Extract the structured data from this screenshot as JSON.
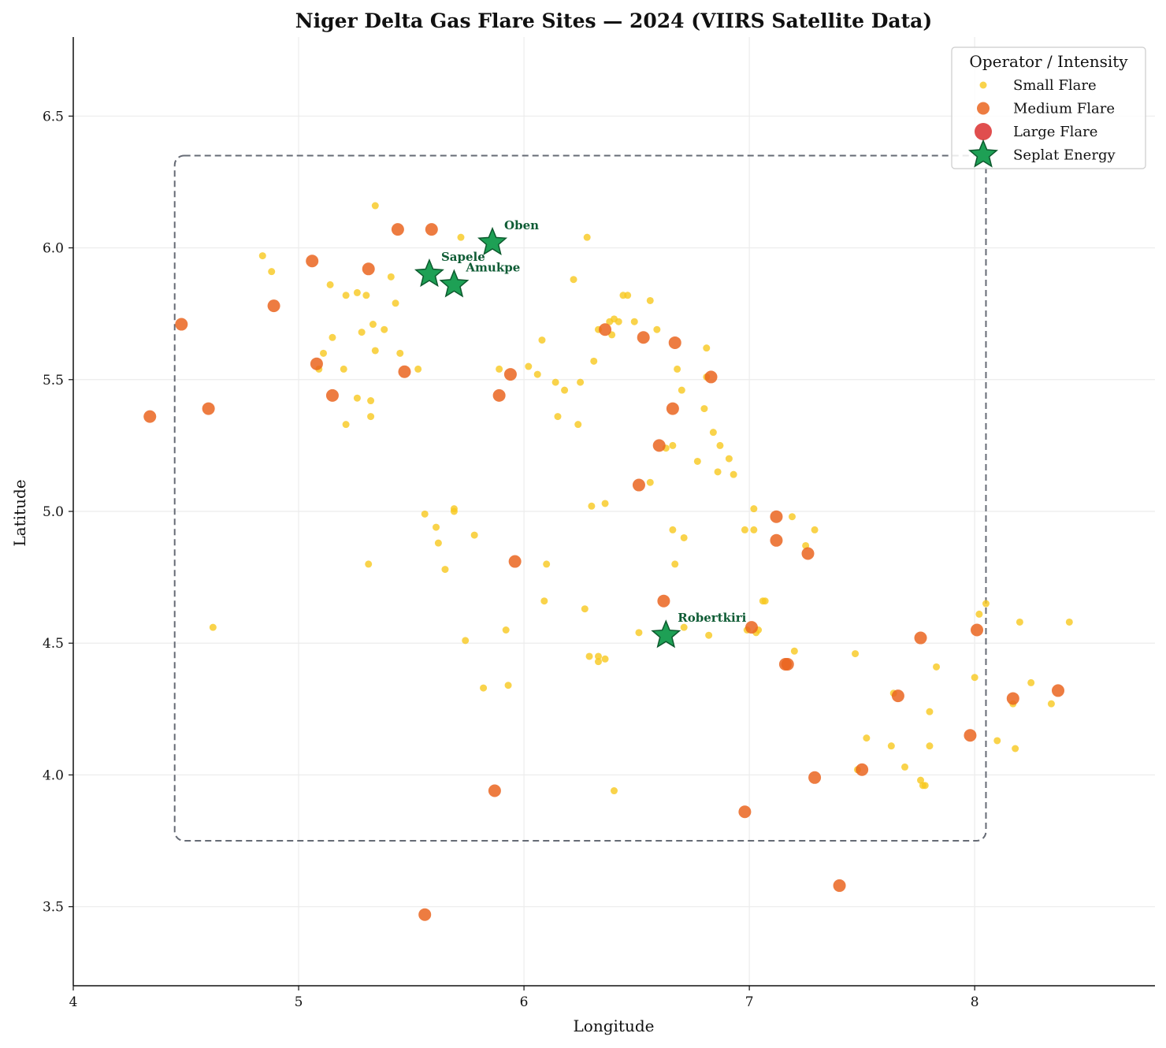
{
  "chart_data": {
    "type": "scatter",
    "title": "Niger Delta Gas Flare Sites — 2024 (VIIRS Satellite Data)",
    "xlabel": "Longitude",
    "ylabel": "Latitude",
    "xlim": [
      4.0,
      8.8
    ],
    "ylim": [
      3.2,
      6.8
    ],
    "xticks": [
      4,
      5,
      6,
      7,
      8
    ],
    "yticks": [
      3.5,
      4.0,
      4.5,
      5.0,
      5.5,
      6.0,
      6.5
    ],
    "grid": true,
    "legend_title": "Operator / Intensity",
    "legend_position": "top-right",
    "region_box": {
      "x": [
        4.45,
        8.05
      ],
      "y": [
        3.75,
        6.35
      ],
      "style": "dashed"
    },
    "series": [
      {
        "name": "Small Flare",
        "color": "#F7C81E",
        "marker": "circle-small",
        "points": [
          [
            4.84,
            5.97
          ],
          [
            4.88,
            5.91
          ],
          [
            5.34,
            6.16
          ],
          [
            5.72,
            6.04
          ],
          [
            6.28,
            6.04
          ],
          [
            5.14,
            5.86
          ],
          [
            5.21,
            5.82
          ],
          [
            5.26,
            5.83
          ],
          [
            5.3,
            5.82
          ],
          [
            5.41,
            5.89
          ],
          [
            5.43,
            5.79
          ],
          [
            6.22,
            5.88
          ],
          [
            6.44,
            5.82
          ],
          [
            6.46,
            5.82
          ],
          [
            6.56,
            5.8
          ],
          [
            5.33,
            5.71
          ],
          [
            5.38,
            5.69
          ],
          [
            5.28,
            5.68
          ],
          [
            5.15,
            5.66
          ],
          [
            5.11,
            5.6
          ],
          [
            5.34,
            5.61
          ],
          [
            5.45,
            5.6
          ],
          [
            5.2,
            5.54
          ],
          [
            5.09,
            5.54
          ],
          [
            5.53,
            5.54
          ],
          [
            5.26,
            5.43
          ],
          [
            5.32,
            5.42
          ],
          [
            5.32,
            5.36
          ],
          [
            5.21,
            5.33
          ],
          [
            6.08,
            5.65
          ],
          [
            6.33,
            5.69
          ],
          [
            6.38,
            5.72
          ],
          [
            6.4,
            5.73
          ],
          [
            6.42,
            5.72
          ],
          [
            6.39,
            5.67
          ],
          [
            6.49,
            5.72
          ],
          [
            6.59,
            5.69
          ],
          [
            6.81,
            5.62
          ],
          [
            6.02,
            5.55
          ],
          [
            6.06,
            5.52
          ],
          [
            6.14,
            5.49
          ],
          [
            6.18,
            5.46
          ],
          [
            6.25,
            5.49
          ],
          [
            6.31,
            5.57
          ],
          [
            5.89,
            5.54
          ],
          [
            6.68,
            5.54
          ],
          [
            6.7,
            5.46
          ],
          [
            6.81,
            5.51
          ],
          [
            6.15,
            5.36
          ],
          [
            6.24,
            5.33
          ],
          [
            6.8,
            5.39
          ],
          [
            6.84,
            5.3
          ],
          [
            6.87,
            5.25
          ],
          [
            6.91,
            5.2
          ],
          [
            6.93,
            5.14
          ],
          [
            6.86,
            5.15
          ],
          [
            6.77,
            5.19
          ],
          [
            6.66,
            5.25
          ],
          [
            6.63,
            5.24
          ],
          [
            6.56,
            5.11
          ],
          [
            5.56,
            4.99
          ],
          [
            5.69,
            5.0
          ],
          [
            5.69,
            5.01
          ],
          [
            5.61,
            4.94
          ],
          [
            5.78,
            4.91
          ],
          [
            5.62,
            4.88
          ],
          [
            5.65,
            4.78
          ],
          [
            5.31,
            4.8
          ],
          [
            4.62,
            4.56
          ],
          [
            6.3,
            5.02
          ],
          [
            6.36,
            5.03
          ],
          [
            6.1,
            4.8
          ],
          [
            6.09,
            4.66
          ],
          [
            6.27,
            4.63
          ],
          [
            5.92,
            4.55
          ],
          [
            5.74,
            4.51
          ],
          [
            5.82,
            4.33
          ],
          [
            5.93,
            4.34
          ],
          [
            6.66,
            4.93
          ],
          [
            6.71,
            4.9
          ],
          [
            6.67,
            4.8
          ],
          [
            6.71,
            4.56
          ],
          [
            6.51,
            4.54
          ],
          [
            6.82,
            4.53
          ],
          [
            6.99,
            4.55
          ],
          [
            7.03,
            4.54
          ],
          [
            7.04,
            4.55
          ],
          [
            7.06,
            4.66
          ],
          [
            7.07,
            4.66
          ],
          [
            7.02,
            5.01
          ],
          [
            7.02,
            4.93
          ],
          [
            6.98,
            4.93
          ],
          [
            7.19,
            4.98
          ],
          [
            7.29,
            4.93
          ],
          [
            7.25,
            4.87
          ],
          [
            6.29,
            4.45
          ],
          [
            6.33,
            4.45
          ],
          [
            6.33,
            4.43
          ],
          [
            6.36,
            4.44
          ],
          [
            6.4,
            3.94
          ],
          [
            7.2,
            4.47
          ],
          [
            7.47,
            4.46
          ],
          [
            7.52,
            4.14
          ],
          [
            7.63,
            4.11
          ],
          [
            7.64,
            4.31
          ],
          [
            7.69,
            4.03
          ],
          [
            7.76,
            3.98
          ],
          [
            7.77,
            3.96
          ],
          [
            7.78,
            3.96
          ],
          [
            7.8,
            4.24
          ],
          [
            7.8,
            4.11
          ],
          [
            7.83,
            4.41
          ],
          [
            7.48,
            4.02
          ],
          [
            8.0,
            4.37
          ],
          [
            8.02,
            4.61
          ],
          [
            8.05,
            4.65
          ],
          [
            8.1,
            4.13
          ],
          [
            8.17,
            4.27
          ],
          [
            8.18,
            4.1
          ],
          [
            8.2,
            4.58
          ],
          [
            8.25,
            4.35
          ],
          [
            8.34,
            4.27
          ],
          [
            8.42,
            4.58
          ]
        ]
      },
      {
        "name": "Medium Flare",
        "color": "#EA6520",
        "marker": "circle-medium",
        "points": [
          [
            5.44,
            6.07
          ],
          [
            5.59,
            6.07
          ],
          [
            5.06,
            5.95
          ],
          [
            5.31,
            5.92
          ],
          [
            4.89,
            5.78
          ],
          [
            4.48,
            5.71
          ],
          [
            5.08,
            5.56
          ],
          [
            5.47,
            5.53
          ],
          [
            5.15,
            5.44
          ],
          [
            4.34,
            5.36
          ],
          [
            4.6,
            5.39
          ],
          [
            5.94,
            5.52
          ],
          [
            5.89,
            5.44
          ],
          [
            6.36,
            5.69
          ],
          [
            6.53,
            5.66
          ],
          [
            6.67,
            5.64
          ],
          [
            6.83,
            5.51
          ],
          [
            6.66,
            5.39
          ],
          [
            6.6,
            5.25
          ],
          [
            6.51,
            5.1
          ],
          [
            5.96,
            4.81
          ],
          [
            6.62,
            4.66
          ],
          [
            7.12,
            4.98
          ],
          [
            7.12,
            4.89
          ],
          [
            7.26,
            4.84
          ],
          [
            7.01,
            4.56
          ],
          [
            7.16,
            4.42
          ],
          [
            7.17,
            4.42
          ],
          [
            7.76,
            4.52
          ],
          [
            8.01,
            4.55
          ],
          [
            7.66,
            4.3
          ],
          [
            8.17,
            4.29
          ],
          [
            8.37,
            4.32
          ],
          [
            7.98,
            4.15
          ],
          [
            7.5,
            4.02
          ],
          [
            7.29,
            3.99
          ],
          [
            5.87,
            3.94
          ],
          [
            6.98,
            3.86
          ],
          [
            7.4,
            3.58
          ],
          [
            5.56,
            3.47
          ]
        ]
      },
      {
        "name": "Large Flare",
        "color": "#DD3B3B",
        "marker": "circle-large",
        "points": []
      },
      {
        "name": "Seplat Energy",
        "color": "#1EA055",
        "marker": "star",
        "points": [
          [
            5.86,
            6.02
          ],
          [
            5.58,
            5.9
          ],
          [
            5.69,
            5.86
          ],
          [
            6.63,
            4.53
          ]
        ],
        "labels": [
          "Oben",
          "Sapele",
          "Amukpe",
          "Robertkiri"
        ]
      }
    ]
  }
}
